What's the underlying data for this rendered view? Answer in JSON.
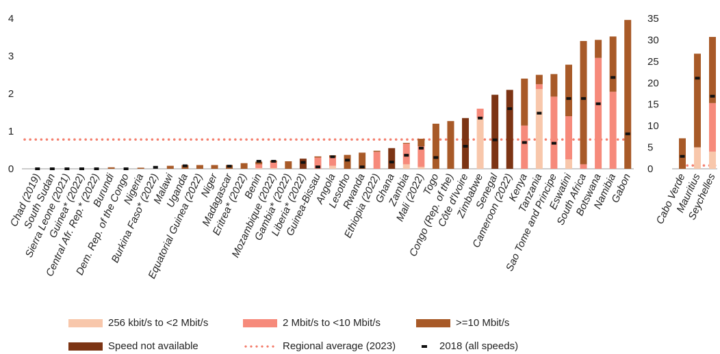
{
  "chart_data": [
    {
      "type": "bar",
      "stacked": true,
      "ylim": [
        0,
        4
      ],
      "yticks": [
        0,
        1,
        2,
        3,
        4
      ],
      "regional_average_2023": 0.78,
      "categories": [
        "Chad (2019)",
        "South Sudan",
        "Sierra Leone (2021)",
        "Guinea* (2022)",
        "Central Afr. Rep.* (2022)",
        "Burundi",
        "Dem. Rep. of the Congo",
        "Nigeria",
        "Burkina Faso* (2022)",
        "Malawi",
        "Uganda",
        "Equatorial Guinea (2022)",
        "Niger",
        "Madagascar",
        "Eritrea* (2022)",
        "Benin",
        "Mozambique (2022)",
        "Gambia* (2022)",
        "Liberia* (2022)",
        "Guinea-Bissau",
        "Angola",
        "Lesotho",
        "Rwanda",
        "Ethiopia (2022)",
        "Ghana",
        "Zambia",
        "Mali (2022)",
        "Togo",
        "Congo (Rep. of the)",
        "Côte d'Ivoire",
        "Zimbabwe",
        "Senegal",
        "Cameroon (2022)",
        "Kenya",
        "Tanzania",
        "Sao Tome and Principe",
        "Eswatini",
        "South Africa",
        "Botswana",
        "Namibia",
        "Gabon"
      ],
      "series": [
        {
          "name": "256 kbit/s to <2 Mbit/s",
          "values": [
            0,
            0,
            0,
            0,
            0,
            0,
            0,
            0,
            0,
            0,
            0,
            0,
            0,
            0,
            0,
            0.02,
            0.02,
            0,
            0,
            0,
            0.08,
            0,
            0,
            0,
            0,
            0.12,
            0.05,
            0,
            0,
            0,
            1.35,
            0,
            0,
            0,
            2.12,
            0,
            0.25,
            0,
            0,
            0,
            0
          ]
        },
        {
          "name": "2 Mbit/s to <10 Mbit/s",
          "values": [
            0,
            0,
            0,
            0,
            0,
            0,
            0,
            0,
            0,
            0,
            0,
            0,
            0,
            0,
            0,
            0.1,
            0.15,
            0,
            0,
            0.3,
            0.22,
            0,
            0,
            0.45,
            0,
            0.55,
            0.55,
            0,
            0,
            0,
            0.25,
            0,
            0,
            1.15,
            0.13,
            1.92,
            1.15,
            0.12,
            2.95,
            2.05,
            0
          ]
        },
        {
          "name": ">=10 Mbit/s",
          "values": [
            0,
            0,
            0,
            0,
            0,
            0.04,
            0,
            0.03,
            0,
            0.08,
            0.1,
            0.1,
            0.1,
            0.1,
            0.15,
            0.07,
            0.05,
            0.2,
            0,
            0.03,
            0.06,
            0.37,
            0.43,
            0.03,
            0,
            0.02,
            0.2,
            1.2,
            1.27,
            0,
            0,
            0,
            0,
            1.25,
            0.25,
            0.6,
            1.37,
            3.28,
            0.48,
            1.47,
            3.96
          ]
        },
        {
          "name": "Speed not available",
          "values": [
            0,
            0,
            0,
            0,
            0,
            0,
            0,
            0,
            0,
            0,
            0,
            0,
            0,
            0,
            0,
            0,
            0,
            0,
            0.27,
            0,
            0,
            0,
            0,
            0,
            0.55,
            0,
            0,
            0,
            0,
            1.35,
            0,
            1.97,
            2.1,
            0,
            0,
            0,
            0,
            0,
            0,
            0,
            0
          ]
        }
      ],
      "markers_2018": [
        {
          "category": "Chad (2019)",
          "value": 0
        },
        {
          "category": "South Sudan",
          "value": 0
        },
        {
          "category": "Sierra Leone (2021)",
          "value": 0
        },
        {
          "category": "Guinea* (2022)",
          "value": 0
        },
        {
          "category": "Central Afr. Rep.* (2022)",
          "value": 0
        },
        {
          "category": "Dem. Rep. of the Congo",
          "value": 0
        },
        {
          "category": "Burkina Faso* (2022)",
          "value": 0.04
        },
        {
          "category": "Uganda",
          "value": 0.08
        },
        {
          "category": "Madagascar",
          "value": 0.07
        },
        {
          "category": "Benin",
          "value": 0.2
        },
        {
          "category": "Mozambique (2022)",
          "value": 0.2
        },
        {
          "category": "Liberia* (2022)",
          "value": 0.17
        },
        {
          "category": "Guinea-Bissau",
          "value": 0.05
        },
        {
          "category": "Angola",
          "value": 0.32
        },
        {
          "category": "Lesotho",
          "value": 0.23
        },
        {
          "category": "Rwanda",
          "value": 0.05
        },
        {
          "category": "Ghana",
          "value": 0.18
        },
        {
          "category": "Zambia",
          "value": 0.36
        },
        {
          "category": "Mali (2022)",
          "value": 0.55
        },
        {
          "category": "Togo",
          "value": 0.3
        },
        {
          "category": "Côte d'Ivoire",
          "value": 0.6
        },
        {
          "category": "Zimbabwe",
          "value": 1.35
        },
        {
          "category": "Senegal",
          "value": 0.77
        },
        {
          "category": "Cameroon (2022)",
          "value": 1.6
        },
        {
          "category": "Kenya",
          "value": 0.7
        },
        {
          "category": "Tanzania",
          "value": 1.48
        },
        {
          "category": "Sao Tome and Principe",
          "value": 0.68
        },
        {
          "category": "Eswatini",
          "value": 1.87
        },
        {
          "category": "South Africa",
          "value": 1.87
        },
        {
          "category": "Botswana",
          "value": 1.73
        },
        {
          "category": "Namibia",
          "value": 2.43
        },
        {
          "category": "Gabon",
          "value": 0.93
        }
      ]
    },
    {
      "type": "bar",
      "stacked": true,
      "ylim": [
        0,
        35
      ],
      "yticks": [
        0,
        5,
        10,
        15,
        20,
        25,
        30,
        35
      ],
      "regional_average_2023": 0.78,
      "categories": [
        "Cabo Verde",
        "Mauritius",
        "Seychelles"
      ],
      "series": [
        {
          "name": "256 kbit/s to <2 Mbit/s",
          "values": [
            0,
            5,
            4
          ]
        },
        {
          "name": "2 Mbit/s to <10 Mbit/s",
          "values": [
            0,
            0,
            11.3
          ]
        },
        {
          "name": ">=10 Mbit/s",
          "values": [
            7.1,
            21.8,
            15.4
          ]
        },
        {
          "name": "Speed not available",
          "values": [
            0,
            0,
            0
          ]
        }
      ],
      "markers_2018": [
        {
          "category": "Cabo Verde",
          "value": 2.9
        },
        {
          "category": "Mauritius",
          "value": 21.1
        },
        {
          "category": "Seychelles",
          "value": 16.9
        }
      ]
    }
  ],
  "colors": {
    "256 kbit/s to <2 Mbit/s": "#f8c7ab",
    "2 Mbit/s to <10 Mbit/s": "#f68a7b",
    ">=10 Mbit/s": "#a85a28",
    "Speed not available": "#7c3414",
    "regional_average": "#f47e6d",
    "marker_2018": "#111111",
    "axis": "#9a9a9a"
  },
  "legend": {
    "items": [
      {
        "label": "256 kbit/s to <2 Mbit/s",
        "type": "swatch",
        "color": "#f8c7ab"
      },
      {
        "label": "2 Mbit/s to <10 Mbit/s",
        "type": "swatch",
        "color": "#f68a7b"
      },
      {
        "label": ">=10 Mbit/s",
        "type": "swatch",
        "color": "#a85a28"
      },
      {
        "label": "Speed not available",
        "type": "swatch",
        "color": "#7c3414"
      },
      {
        "label": "Regional average (2023)",
        "type": "dotted",
        "color": "#f47e6d"
      },
      {
        "label": "2018 (all speeds)",
        "type": "dash",
        "color": "#111111"
      }
    ]
  }
}
